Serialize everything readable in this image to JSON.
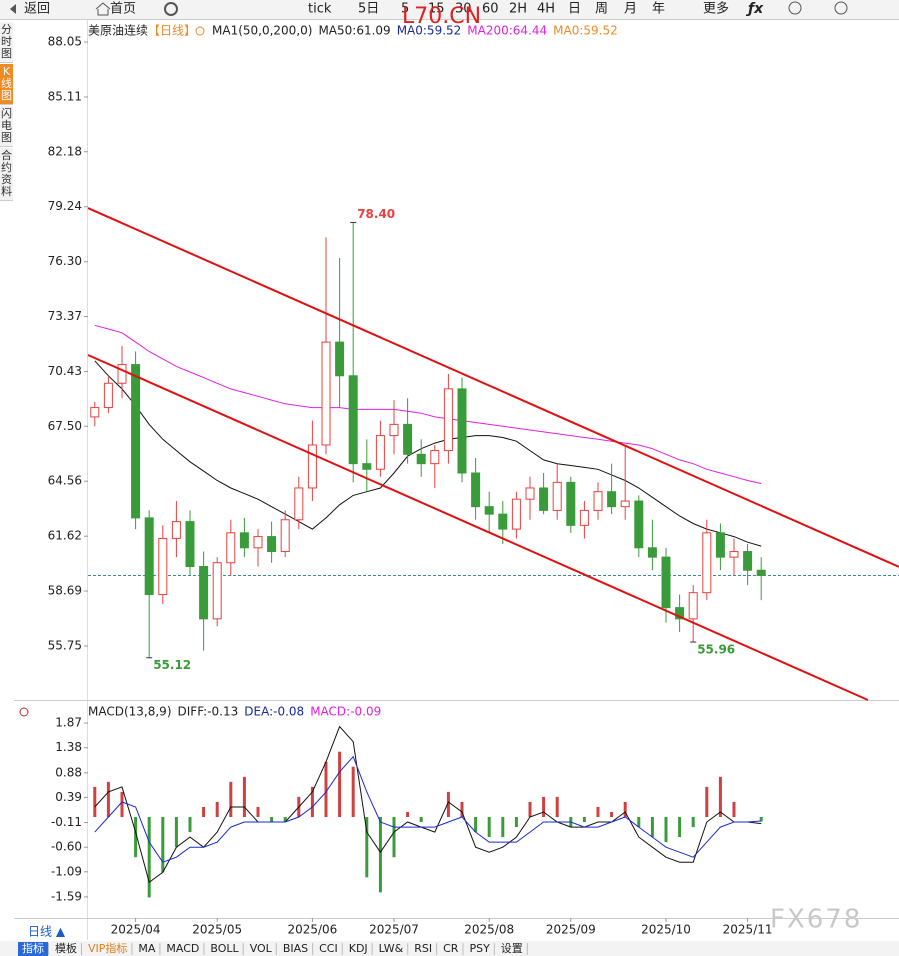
{
  "toolbar": [
    "返回",
    "首页",
    "tick",
    "5日",
    "5",
    "15",
    "30",
    "60",
    "2H",
    "4H",
    "日",
    "周",
    "月",
    "年",
    "更多"
  ],
  "sidebar": [
    "分时图",
    "K线图",
    "闪电图",
    "合约资料"
  ],
  "watermarks": [
    "L70.CN",
    "FX678"
  ],
  "bottom_bar": {
    "period": "日线 ▲",
    "tabs": [
      "指标",
      "模板",
      "VIP指标",
      "MA",
      "MACD",
      "BOLL",
      "VOL",
      "BIAS",
      "CCI",
      "KDJ",
      "LW&",
      "RSI",
      "CR",
      "PSY",
      "设置"
    ]
  },
  "chart_data": [
    {
      "type": "candlestick",
      "title": "美原油连续",
      "subtitle": "【日线】",
      "legend": [
        {
          "text": "MA1(50,0,200,0)",
          "color": "#222222"
        },
        {
          "text": "MA50:61.09",
          "color": "#222222"
        },
        {
          "text": "MA0:59.52",
          "color": "#1a2a9a"
        },
        {
          "text": "MA200:64.44",
          "color": "#e020e0"
        },
        {
          "text": "MA0:59.52",
          "color": "#f08a24"
        }
      ],
      "up_color": "#e8413f",
      "down_color": "#3a9b3a",
      "ohlc": [
        [
          68.0,
          68.8,
          67.5,
          68.5
        ],
        [
          68.5,
          70.2,
          68.2,
          69.8
        ],
        [
          69.8,
          71.8,
          69.0,
          70.8
        ],
        [
          70.8,
          71.5,
          62.0,
          62.6
        ],
        [
          62.6,
          63.0,
          55.12,
          58.5
        ],
        [
          58.5,
          62.2,
          58.0,
          61.5
        ],
        [
          61.5,
          63.5,
          60.5,
          62.4
        ],
        [
          62.4,
          63.0,
          59.5,
          60.0
        ],
        [
          60.0,
          60.8,
          55.5,
          57.2
        ],
        [
          57.2,
          60.5,
          56.8,
          60.2
        ],
        [
          60.2,
          62.5,
          59.5,
          61.8
        ],
        [
          61.8,
          62.6,
          60.5,
          61.0
        ],
        [
          61.0,
          62.0,
          60.0,
          61.6
        ],
        [
          61.6,
          62.4,
          60.2,
          60.8
        ],
        [
          60.8,
          63.0,
          60.5,
          62.5
        ],
        [
          62.5,
          64.8,
          62.0,
          64.2
        ],
        [
          64.2,
          67.8,
          63.5,
          66.5
        ],
        [
          66.5,
          77.6,
          66.0,
          72.0
        ],
        [
          72.0,
          76.5,
          68.5,
          70.2
        ],
        [
          70.2,
          78.4,
          64.5,
          65.5
        ],
        [
          65.5,
          66.8,
          64.0,
          65.2
        ],
        [
          65.2,
          67.8,
          64.8,
          67.0
        ],
        [
          67.0,
          68.9,
          66.0,
          67.6
        ],
        [
          67.6,
          69.0,
          65.5,
          66.0
        ],
        [
          66.0,
          66.8,
          64.8,
          65.5
        ],
        [
          65.5,
          66.5,
          64.2,
          66.2
        ],
        [
          66.2,
          70.3,
          65.5,
          69.5
        ],
        [
          69.5,
          70.1,
          64.5,
          65.0
        ],
        [
          65.0,
          65.8,
          62.5,
          63.2
        ],
        [
          63.2,
          64.0,
          61.8,
          62.8
        ],
        [
          62.8,
          63.5,
          61.2,
          62.0
        ],
        [
          62.0,
          64.0,
          61.5,
          63.6
        ],
        [
          63.6,
          64.8,
          62.5,
          64.2
        ],
        [
          64.2,
          65.0,
          62.8,
          63.0
        ],
        [
          63.0,
          65.5,
          62.5,
          64.5
        ],
        [
          64.5,
          64.8,
          61.8,
          62.2
        ],
        [
          62.2,
          63.5,
          61.5,
          63.0
        ],
        [
          63.0,
          64.5,
          62.5,
          64.0
        ],
        [
          64.0,
          65.5,
          62.8,
          63.2
        ],
        [
          63.2,
          66.5,
          62.5,
          63.5
        ],
        [
          63.5,
          63.8,
          60.5,
          61.0
        ],
        [
          61.0,
          62.5,
          59.8,
          60.5
        ],
        [
          60.5,
          61.0,
          57.0,
          57.8
        ],
        [
          57.8,
          58.5,
          56.5,
          57.2
        ],
        [
          57.2,
          59.0,
          55.96,
          58.6
        ],
        [
          58.6,
          62.5,
          58.2,
          61.8
        ],
        [
          61.8,
          62.3,
          59.8,
          60.5
        ],
        [
          60.5,
          61.5,
          59.5,
          60.8
        ],
        [
          60.8,
          61.2,
          59.0,
          59.8
        ],
        [
          59.8,
          60.5,
          58.2,
          59.52
        ]
      ],
      "series": [
        {
          "color": "#111111",
          "values": [
            71.0,
            70.2,
            69.5,
            68.6,
            67.6,
            66.8,
            66.2,
            65.6,
            65.1,
            64.6,
            64.2,
            63.9,
            63.6,
            63.2,
            62.8,
            62.4,
            62.0,
            62.6,
            63.3,
            63.8,
            64.0,
            64.2,
            65.0,
            65.9,
            66.3,
            66.6,
            66.8,
            66.9,
            67.0,
            67.0,
            66.9,
            66.7,
            66.2,
            65.7,
            65.5,
            65.4,
            65.3,
            65.2,
            64.9,
            64.6,
            64.2,
            63.7,
            63.2,
            62.7,
            62.3,
            62.0,
            61.8,
            61.6,
            61.3,
            61.09
          ]
        },
        {
          "color": "#e020e0",
          "values": [
            72.9,
            72.7,
            72.5,
            72.0,
            71.5,
            71.1,
            70.7,
            70.4,
            70.1,
            69.8,
            69.5,
            69.3,
            69.1,
            68.9,
            68.7,
            68.6,
            68.5,
            68.5,
            68.5,
            68.4,
            68.4,
            68.4,
            68.4,
            68.3,
            68.2,
            68.0,
            67.9,
            67.8,
            67.7,
            67.6,
            67.5,
            67.4,
            67.3,
            67.2,
            67.1,
            67.0,
            66.9,
            66.8,
            66.7,
            66.6,
            66.5,
            66.3,
            66.0,
            65.7,
            65.5,
            65.2,
            65.0,
            64.8,
            64.6,
            64.44
          ]
        }
      ],
      "trend_lines": [
        {
          "color": "#e01010",
          "x": [
            -0.5,
            59.13
          ],
          "y": [
            79.17,
            59.98
          ]
        },
        {
          "color": "#e01010",
          "x": [
            -0.5,
            56.85
          ],
          "y": [
            71.31,
            52.86
          ]
        }
      ],
      "last_price": 59.52,
      "annotations": [
        {
          "value": 78.4,
          "label": "78.40"
        },
        {
          "value": 55.12,
          "label": "55.12"
        },
        {
          "value": 55.96,
          "label": "55.96"
        }
      ],
      "ylim": [
        52.86,
        89.12
      ],
      "yticks": [
        88.05,
        85.11,
        82.18,
        79.24,
        {
          "value": 76.3,
          "label": "76.30"
        },
        73.37,
        70.43,
        {
          "value": 67.5,
          "label": "67.50"
        },
        64.56,
        61.62,
        58.69,
        55.75
      ]
    },
    {
      "type": "macd",
      "legend": [
        {
          "text": "MACD(13,8,9)",
          "color": "#222222"
        },
        {
          "text": "DIFF:-0.13",
          "color": "#222222"
        },
        {
          "text": "DEA:-0.08",
          "color": "#1a2a9a"
        },
        {
          "text": "MACD:-0.09",
          "color": "#e020e0"
        }
      ],
      "categories": [
        null,
        null,
        null,
        "2025/04",
        null,
        null,
        null,
        null,
        null,
        "2025/05",
        null,
        null,
        null,
        null,
        null,
        null,
        "2025/06",
        null,
        null,
        null,
        null,
        null,
        "2025/07",
        null,
        null,
        null,
        null,
        null,
        null,
        "2025/08",
        null,
        null,
        null,
        null,
        null,
        "2025/09",
        null,
        null,
        null,
        null,
        null,
        null,
        "2025/10",
        null,
        null,
        null,
        null,
        null,
        "2025/11",
        null
      ],
      "up_color": "#d04040",
      "down_color": "#3a9b3a",
      "values": [
        0.6,
        0.7,
        0.5,
        -0.8,
        -1.6,
        -1.1,
        -0.6,
        -0.3,
        0.2,
        0.3,
        0.7,
        0.8,
        0.2,
        -0.1,
        -0.1,
        0.4,
        0.6,
        1.1,
        1.3,
        1.0,
        -1.2,
        -1.5,
        -0.8,
        0.1,
        -0.1,
        0.0,
        0.5,
        0.3,
        -0.3,
        -0.4,
        -0.4,
        -0.2,
        0.3,
        0.4,
        0.4,
        -0.2,
        -0.1,
        0.2,
        0.1,
        0.3,
        -0.2,
        -0.4,
        -0.5,
        -0.4,
        -0.2,
        0.6,
        0.8,
        0.3,
        0.0,
        -0.09
      ],
      "series": [
        {
          "color": "#111111",
          "values": [
            0.2,
            0.5,
            0.6,
            -0.3,
            -1.3,
            -1.1,
            -0.6,
            -0.4,
            -0.6,
            -0.3,
            0.2,
            0.2,
            -0.1,
            -0.1,
            -0.1,
            0.2,
            0.5,
            1.1,
            1.8,
            1.5,
            -0.3,
            -0.7,
            -0.3,
            -0.1,
            -0.2,
            -0.3,
            0.3,
            0.1,
            -0.6,
            -0.7,
            -0.6,
            -0.4,
            0.0,
            0.1,
            -0.1,
            -0.2,
            -0.2,
            -0.1,
            -0.1,
            0.1,
            -0.4,
            -0.6,
            -0.8,
            -0.9,
            -0.9,
            -0.1,
            0.1,
            -0.1,
            -0.1,
            -0.13
          ]
        },
        {
          "color": "#1a2ad0",
          "values": [
            -0.3,
            0.0,
            0.3,
            0.2,
            -0.5,
            -0.9,
            -0.8,
            -0.6,
            -0.6,
            -0.5,
            -0.2,
            -0.1,
            -0.1,
            -0.1,
            -0.1,
            0.0,
            0.2,
            0.5,
            0.9,
            1.2,
            0.5,
            -0.1,
            -0.2,
            -0.2,
            -0.2,
            -0.2,
            -0.1,
            0.0,
            -0.3,
            -0.5,
            -0.5,
            -0.5,
            -0.3,
            -0.1,
            -0.1,
            -0.1,
            -0.2,
            -0.2,
            -0.1,
            0.0,
            -0.2,
            -0.4,
            -0.6,
            -0.7,
            -0.8,
            -0.5,
            -0.2,
            -0.1,
            -0.1,
            -0.08
          ]
        }
      ],
      "ylim": [
        -2.01,
        2.23
      ],
      "yticks": [
        1.87,
        1.38,
        0.88,
        0.39,
        -0.11,
        {
          "value": -0.6,
          "label": "-0.60"
        },
        -1.09,
        -1.59
      ]
    }
  ]
}
